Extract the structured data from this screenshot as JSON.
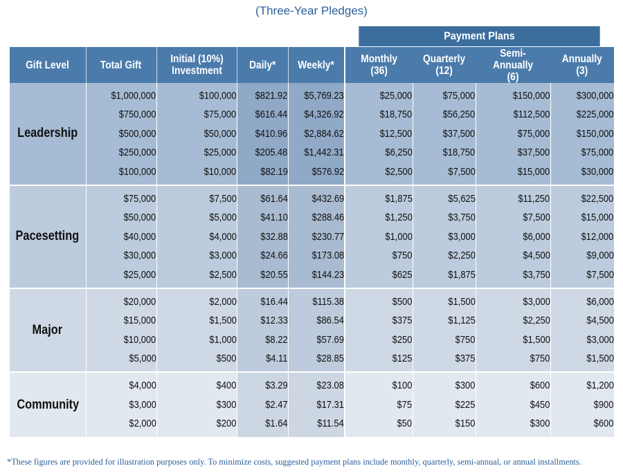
{
  "title": "(Three-Year Pledges)",
  "payment_plans_label": "Payment Plans",
  "headers": {
    "gift_level": "Gift Level",
    "total_gift": "Total Gift",
    "initial_1": "Initial (10%)",
    "initial_2": "Investment",
    "daily": "Daily*",
    "weekly": "Weekly*",
    "monthly_1": "Monthly",
    "monthly_2": "(36)",
    "quarterly_1": "Quarterly",
    "quarterly_2": "(12)",
    "semi_1": "Semi-Annually",
    "semi_2": "(6)",
    "annually_1": "Annually",
    "annually_2": "(3)"
  },
  "groups": [
    {
      "level": "Leadership",
      "total": [
        "$1,000,000",
        "$750,000",
        "$500,000",
        "$250,000",
        "$100,000"
      ],
      "initial": [
        "$100,000",
        "$75,000",
        "$50,000",
        "$25,000",
        "$10,000"
      ],
      "daily": [
        "$821.92",
        "$616.44",
        "$410.96",
        "$205.48",
        "$82.19"
      ],
      "weekly": [
        "$5,769.23",
        "$4,326.92",
        "$2,884.62",
        "$1,442.31",
        "$576.92"
      ],
      "monthly": [
        "$25,000",
        "$18,750",
        "$12,500",
        "$6,250",
        "$2,500"
      ],
      "quarterly": [
        "$75,000",
        "$56,250",
        "$37,500",
        "$18,750",
        "$7,500"
      ],
      "semi": [
        "$150,000",
        "$112,500",
        "$75,000",
        "$37,500",
        "$15,000"
      ],
      "annually": [
        "$300,000",
        "$225,000",
        "$150,000",
        "$75,000",
        "$30,000"
      ]
    },
    {
      "level": "Pacesetting",
      "total": [
        "$75,000",
        "$50,000",
        "$40,000",
        "$30,000",
        "$25,000"
      ],
      "initial": [
        "$7,500",
        "$5,000",
        "$4,000",
        "$3,000",
        "$2,500"
      ],
      "daily": [
        "$61.64",
        "$41.10",
        "$32.88",
        "$24.66",
        "$20.55"
      ],
      "weekly": [
        "$432.69",
        "$288.46",
        "$230.77",
        "$173.08",
        "$144.23"
      ],
      "monthly": [
        "$1,875",
        "$1,250",
        "$1,000",
        "$750",
        "$625"
      ],
      "quarterly": [
        "$5,625",
        "$3,750",
        "$3,000",
        "$2,250",
        "$1,875"
      ],
      "semi": [
        "$11,250",
        "$7,500",
        "$6,000",
        "$4,500",
        "$3,750"
      ],
      "annually": [
        "$22,500",
        "$15,000",
        "$12,000",
        "$9,000",
        "$7,500"
      ]
    },
    {
      "level": "Major",
      "total": [
        "$20,000",
        "$15,000",
        "$10,000",
        "$5,000"
      ],
      "initial": [
        "$2,000",
        "$1,500",
        "$1,000",
        "$500"
      ],
      "daily": [
        "$16.44",
        "$12.33",
        "$8.22",
        "$4.11"
      ],
      "weekly": [
        "$115.38",
        "$86.54",
        "$57.69",
        "$28.85"
      ],
      "monthly": [
        "$500",
        "$375",
        "$250",
        "$125"
      ],
      "quarterly": [
        "$1,500",
        "$1,125",
        "$750",
        "$375"
      ],
      "semi": [
        "$3,000",
        "$2,250",
        "$1,500",
        "$750"
      ],
      "annually": [
        "$6,000",
        "$4,500",
        "$3,000",
        "$1,500"
      ]
    },
    {
      "level": "Community",
      "total": [
        "$4,000",
        "$3,000",
        "$2,000"
      ],
      "initial": [
        "$400",
        "$300",
        "$200"
      ],
      "daily": [
        "$3.29",
        "$2.47",
        "$1.64"
      ],
      "weekly": [
        "$23.08",
        "$17.31",
        "$11.54"
      ],
      "monthly": [
        "$100",
        "$75",
        "$50"
      ],
      "quarterly": [
        "$300",
        "$225",
        "$150"
      ],
      "semi": [
        "$600",
        "$450",
        "$300"
      ],
      "annually": [
        "$1,200",
        "$900",
        "$600"
      ]
    }
  ],
  "footnote": "*These figures are provided for illustration purposes only. To minimize costs, suggested payment plans include monthly, quarterly, semi-annual, or annual installments.",
  "colors": {
    "header": "#4a7bab",
    "payment_plans_header": "#3b6d9d",
    "title_text": "#2c5f9a",
    "leadership_bg": "#a6bcd4",
    "pacesetting_bg": "#bccbdd",
    "major_bg": "#cfd9e6",
    "community_bg": "#e2e8f0"
  }
}
